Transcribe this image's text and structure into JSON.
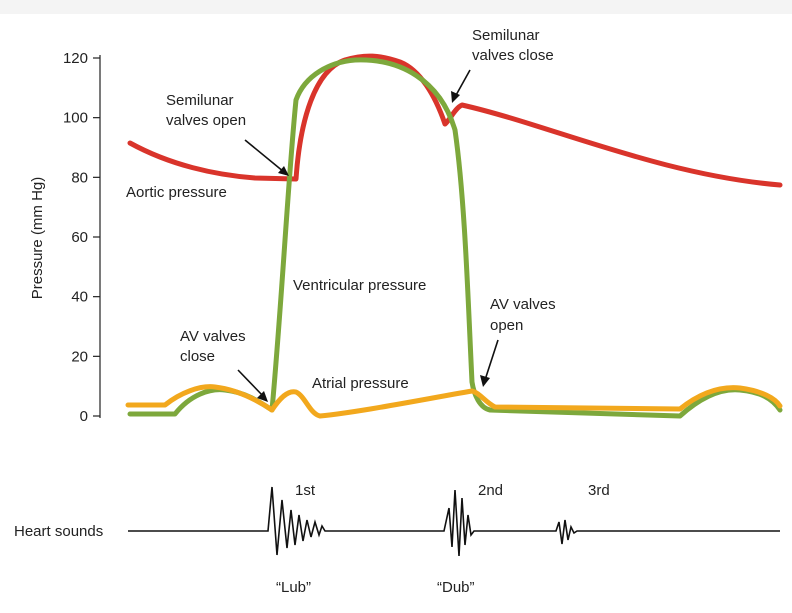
{
  "axes": {
    "ylabel": "Pressure (mm Hg)",
    "yticks": [
      "0",
      "20",
      "40",
      "60",
      "80",
      "100",
      "120"
    ],
    "ylim": [
      0,
      120
    ]
  },
  "colors": {
    "aortic": "#d9342b",
    "ventricular": "#7da83c",
    "atrial": "#f2a81d",
    "text": "#222222"
  },
  "curves": {
    "aortic_label": "Aortic pressure",
    "ventricular_label": "Ventricular pressure",
    "atrial_label": "Atrial pressure"
  },
  "annotations": {
    "semilunar_open": [
      "Semilunar",
      "valves open"
    ],
    "semilunar_close": [
      "Semilunar",
      "valves close"
    ],
    "av_close": [
      "AV valves",
      "close"
    ],
    "av_open": [
      "AV valves",
      "open"
    ]
  },
  "heart_sounds": {
    "label": "Heart sounds",
    "first": "1st",
    "second": "2nd",
    "third": "3rd",
    "lub": "“Lub”",
    "dub": "“Dub”"
  }
}
